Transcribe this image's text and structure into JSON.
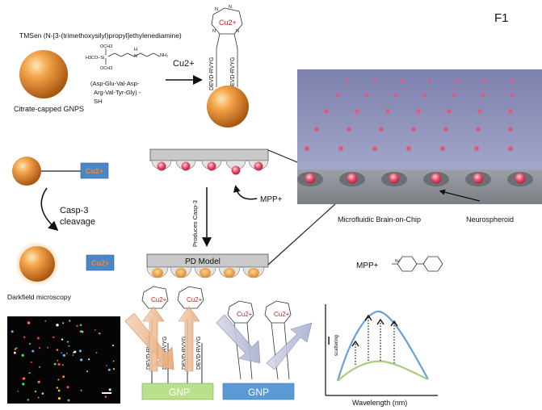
{
  "figure_label": "F1",
  "top": {
    "tmsen_line1": "TMSen (N-[3-(trimethoxysilyl)propyl]ethylenediamine)",
    "ome_1": "OCH3",
    "ome_2": "H3CO–Si",
    "ome_3": "OCH3",
    "peptide_line1": "(Asp-Glu-Val-Asp-",
    "peptide_line2": "Arg-Val-Tyr-Gly) -",
    "peptide_line3": "SH",
    "gnp_label": "Citrate-capped GNPS",
    "cu_arrow_label": "Cu2+",
    "cu_ion": "Cu2+",
    "ligand_left": "DEVD-RVYG",
    "ligand_right": "DEVD-RVYG"
  },
  "middle": {
    "cu_box": "Cu2+",
    "casp_label_1": "Casp-3",
    "casp_label_2": "cleavage",
    "cu_box_2": "Cu2+",
    "darkfield_label": "Darkfield microscopy",
    "produces_label": "Produces Casp-3",
    "mpp_label": "MPP+",
    "pd_model_label": "PD Model",
    "chip_label": "Microfluidic Brain-on-Chip",
    "neurospheroid_label": "Neurospheroid",
    "mpp_structure_label": "MPP+"
  },
  "bottom": {
    "gnp_left": "GNP",
    "gnp_right": "GNP",
    "cu_ion": "Cu2+",
    "ligand_1": "DEVD-RVYG",
    "ligand_2": "DEVD-RVYG",
    "ligand_3": "DEVD-RVYG",
    "ligand_4": "DEVD-RVYG",
    "spectrum_ylabel": "I",
    "spectrum_ysub": "scattering",
    "spectrum_xlabel": "Wavelength (nm)"
  },
  "colors": {
    "gold": "#e8882a",
    "cu_box": "#4a86c8",
    "cu_text": "#f08a30",
    "chip": "#8b90b8",
    "gnp_green": "#b9e08a",
    "gnp_blue": "#5b9bd5",
    "spectrum_blue": "#6a9fd8",
    "spectrum_green": "#a8cc7a"
  }
}
